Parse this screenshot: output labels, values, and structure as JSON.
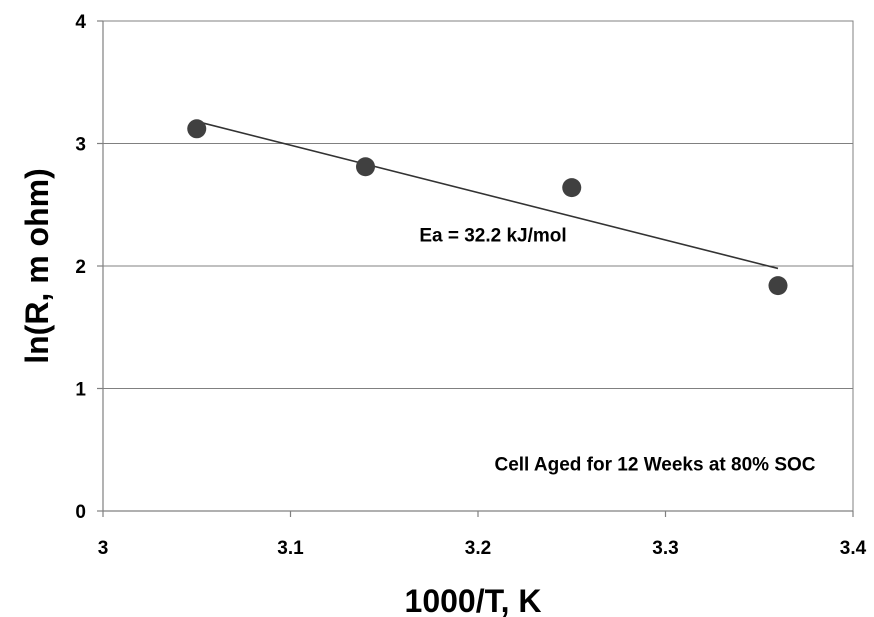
{
  "chart_data": {
    "type": "scatter",
    "xlabel": "1000/T, K",
    "ylabel": "ln(R, m ohm)",
    "xlim": [
      3,
      3.4
    ],
    "ylim": [
      0,
      4
    ],
    "x_ticks": [
      "3",
      "3.1",
      "3.2",
      "3.3",
      "3.4"
    ],
    "y_ticks": [
      "0",
      "1",
      "2",
      "3",
      "4"
    ],
    "grid": "horizontal",
    "series": [
      {
        "x": [
          3.05,
          3.14,
          3.25,
          3.36
        ],
        "y": [
          3.12,
          2.81,
          2.64,
          1.84
        ],
        "color": "#404040"
      }
    ],
    "fit_line": {
      "x": [
        3.05,
        3.36
      ],
      "y": [
        3.18,
        1.98
      ],
      "color": "#333333"
    },
    "annotations": [
      {
        "text": "Ea = 32.2 kJ/mol",
        "x": 3.208,
        "y": 2.2
      },
      {
        "text": "Cell Aged for 12 Weeks at 80% SOC",
        "x": 3.38,
        "y": 0.33
      }
    ]
  }
}
